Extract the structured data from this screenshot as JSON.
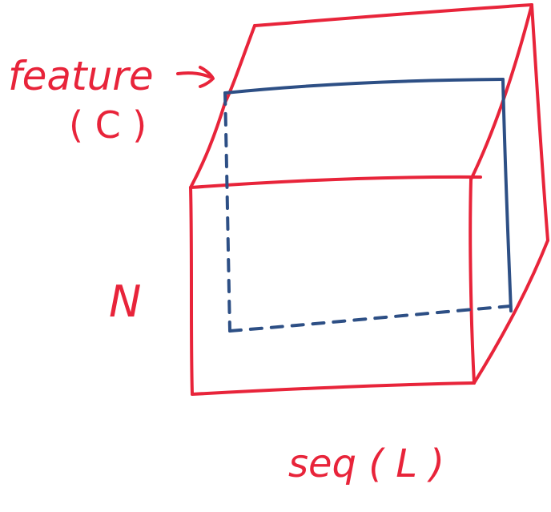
{
  "diagram": {
    "labels": {
      "feature": "feature",
      "feature_symbol": "( C )",
      "batch": "N",
      "seq": "seq ( L )"
    },
    "colors": {
      "outline": "#e8243a",
      "highlight": "#2d4f85",
      "text": "#e8243a",
      "background": "#ffffff"
    },
    "icons": {
      "arrow": "hand-drawn-arrow-icon"
    }
  }
}
